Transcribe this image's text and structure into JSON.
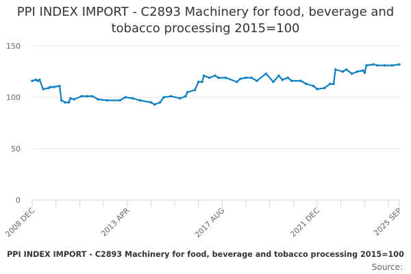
{
  "chart_data": {
    "type": "line",
    "title": "PPI INDEX IMPORT - C2893 Machinery for food, beverage and tobacco processing 2015=100",
    "xlabel": "",
    "ylabel": "",
    "ylim": [
      0,
      150
    ],
    "yticks": [
      "0",
      "50",
      "100",
      "150"
    ],
    "xlim": [
      "2008-12",
      "2025-09"
    ],
    "xtick_labels": [
      {
        "date": "2008-12",
        "label": "2008 DEC"
      },
      {
        "date": "2013-04",
        "label": "2013 APR"
      },
      {
        "date": "2017-08",
        "label": "2017 AUG"
      },
      {
        "date": "2021-12",
        "label": "2021 DEC"
      },
      {
        "date": "2025-09",
        "label": "2025 SEP"
      }
    ],
    "grid": true,
    "legend": "none",
    "color": "#0a7fc4",
    "points": [
      [
        "2008-12",
        116
      ],
      [
        "2009-02",
        117
      ],
      [
        "2009-03",
        116
      ],
      [
        "2009-04",
        117
      ],
      [
        "2009-06",
        108
      ],
      [
        "2009-09",
        109
      ],
      [
        "2009-10",
        110
      ],
      [
        "2009-12",
        110
      ],
      [
        "2010-03",
        111
      ],
      [
        "2010-04",
        97
      ],
      [
        "2010-06",
        95
      ],
      [
        "2010-08",
        95
      ],
      [
        "2010-09",
        99
      ],
      [
        "2010-11",
        98
      ],
      [
        "2011-03",
        101
      ],
      [
        "2011-06",
        101
      ],
      [
        "2011-09",
        101
      ],
      [
        "2011-12",
        98
      ],
      [
        "2012-05",
        97
      ],
      [
        "2012-12",
        97
      ],
      [
        "2013-03",
        100
      ],
      [
        "2013-07",
        99
      ],
      [
        "2013-11",
        97
      ],
      [
        "2014-05",
        95
      ],
      [
        "2014-07",
        93
      ],
      [
        "2014-10",
        95
      ],
      [
        "2014-12",
        100
      ],
      [
        "2015-04",
        101
      ],
      [
        "2015-09",
        99
      ],
      [
        "2015-12",
        101
      ],
      [
        "2016-01",
        105
      ],
      [
        "2016-05",
        107
      ],
      [
        "2016-07",
        115
      ],
      [
        "2016-09",
        115
      ],
      [
        "2016-10",
        121
      ],
      [
        "2017-01",
        119
      ],
      [
        "2017-04",
        121
      ],
      [
        "2017-06",
        119
      ],
      [
        "2017-10",
        119
      ],
      [
        "2018-04",
        115
      ],
      [
        "2018-06",
        118
      ],
      [
        "2018-09",
        119
      ],
      [
        "2018-12",
        119
      ],
      [
        "2019-03",
        116
      ],
      [
        "2019-08",
        123
      ],
      [
        "2019-12",
        115
      ],
      [
        "2020-03",
        121
      ],
      [
        "2020-05",
        117
      ],
      [
        "2020-08",
        119
      ],
      [
        "2020-10",
        116
      ],
      [
        "2021-03",
        116
      ],
      [
        "2021-06",
        113
      ],
      [
        "2021-10",
        111
      ],
      [
        "2021-12",
        108
      ],
      [
        "2022-04",
        109
      ],
      [
        "2022-07",
        113
      ],
      [
        "2022-09",
        113
      ],
      [
        "2022-10",
        127
      ],
      [
        "2023-02",
        125
      ],
      [
        "2023-04",
        127
      ],
      [
        "2023-07",
        123
      ],
      [
        "2023-10",
        125
      ],
      [
        "2024-01",
        126
      ],
      [
        "2024-02",
        124
      ],
      [
        "2024-03",
        131
      ],
      [
        "2024-07",
        132
      ],
      [
        "2024-09",
        131
      ],
      [
        "2025-01",
        131
      ],
      [
        "2025-05",
        131
      ],
      [
        "2025-09",
        132
      ]
    ]
  },
  "caption": "PPI INDEX IMPORT - C2893 Machinery for food, beverage and tobacco processing 2015=100",
  "source_label": "Source:"
}
